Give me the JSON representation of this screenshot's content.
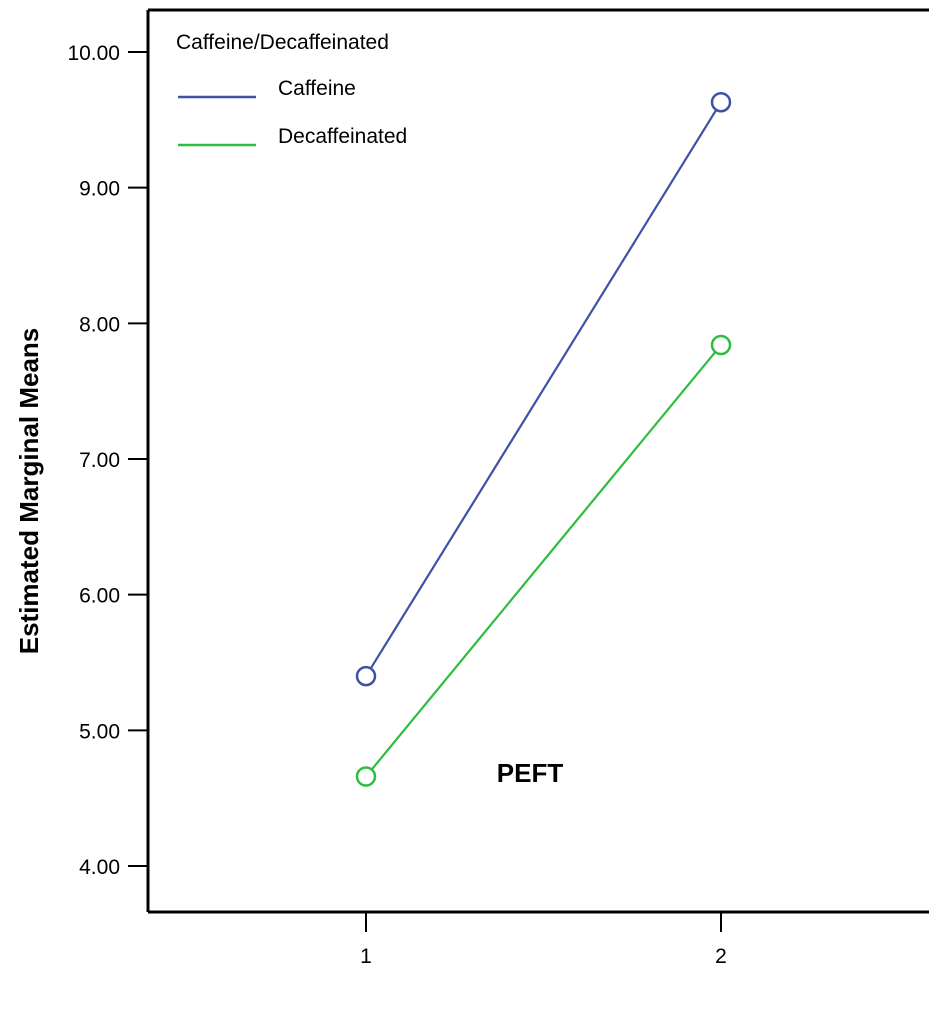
{
  "chart_data": {
    "type": "line",
    "xlabel": "PEFT",
    "ylabel": "Estimated Marginal Means",
    "categories": [
      "1",
      "2"
    ],
    "ylim": [
      4.0,
      10.0
    ],
    "yticks": [
      "4.00",
      "5.00",
      "6.00",
      "7.00",
      "8.00",
      "9.00",
      "10.00"
    ],
    "grid": false,
    "legend": {
      "title": "Caffeine/Decaffeinated",
      "placement": "top-left"
    },
    "series": [
      {
        "name": "Caffeine",
        "color": "#3f51a5",
        "marker": "circle-open",
        "values": [
          5.4,
          9.63
        ]
      },
      {
        "name": "Decaffeinated",
        "color": "#2ebd40",
        "marker": "circle-open",
        "values": [
          4.66,
          7.84
        ]
      }
    ]
  }
}
